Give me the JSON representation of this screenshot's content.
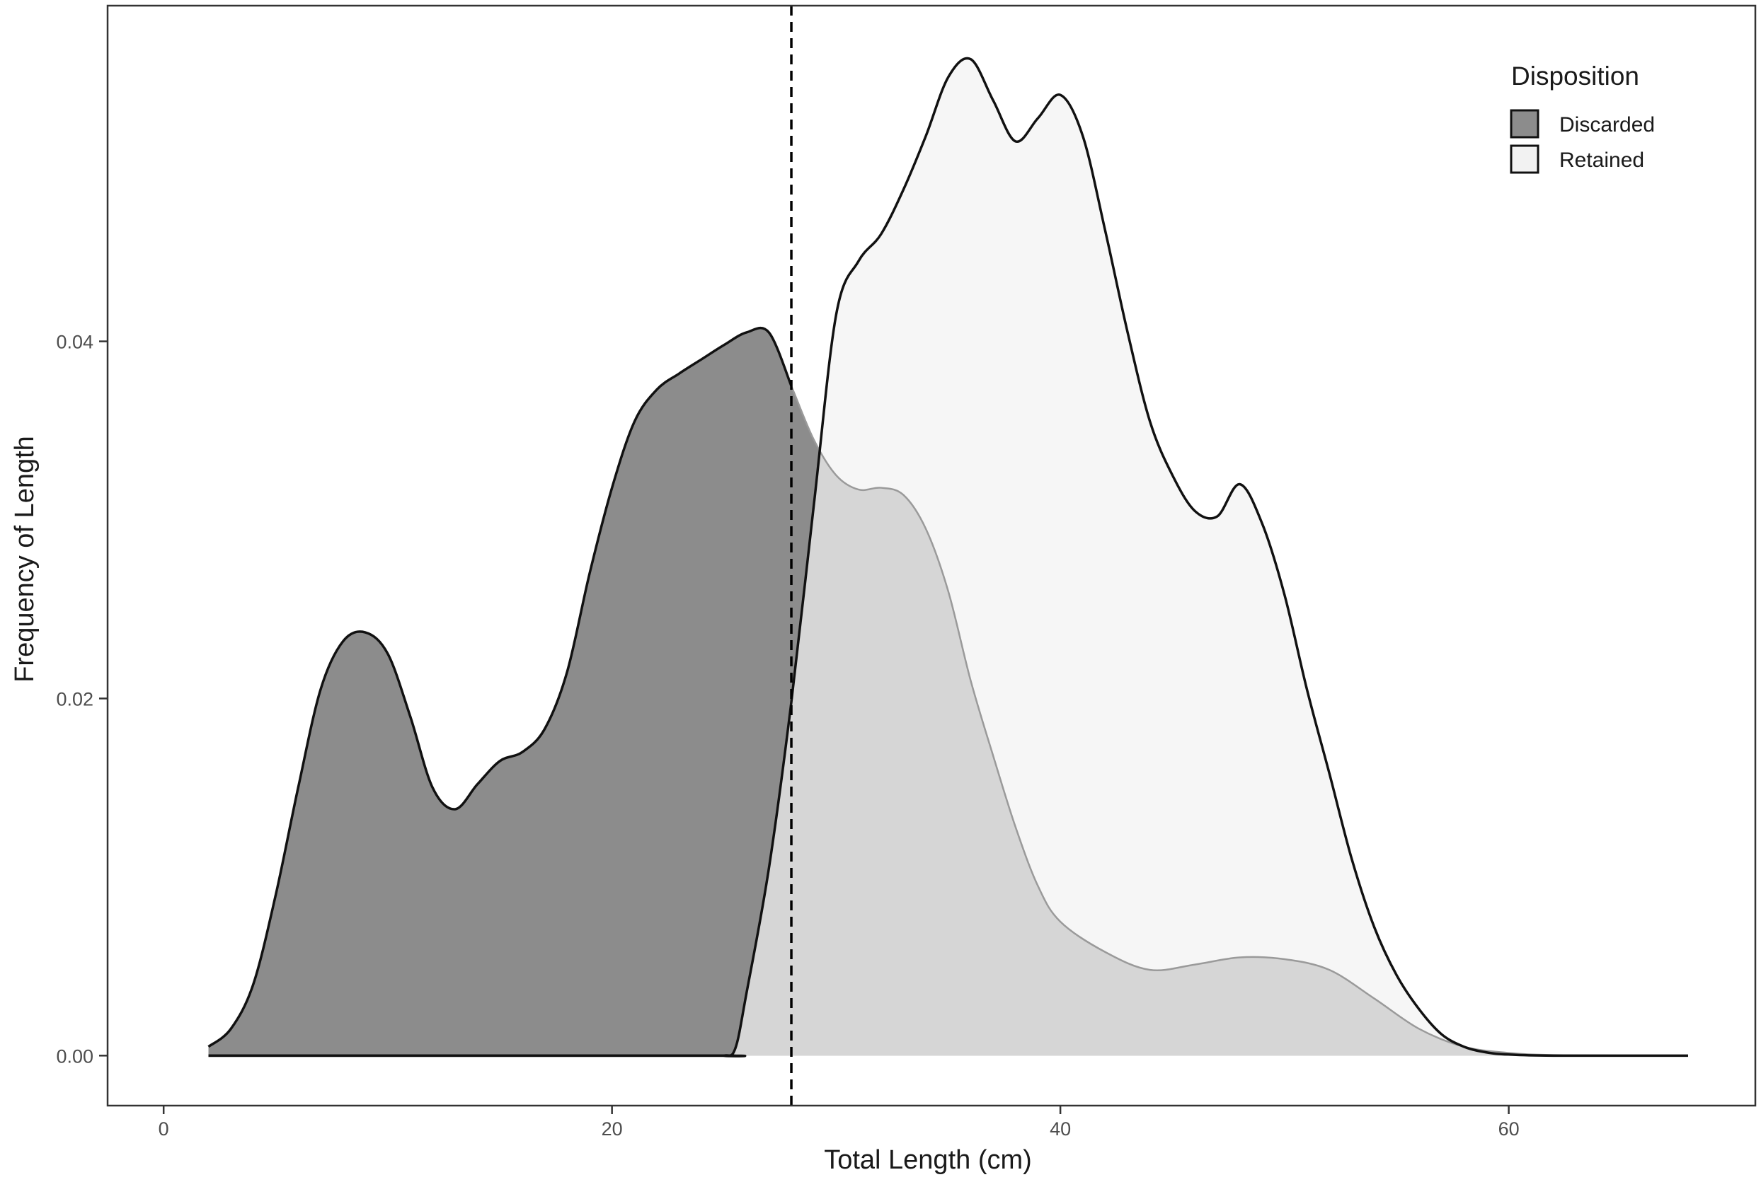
{
  "chart_data": {
    "type": "area",
    "title": "",
    "xlabel": "Total Length (cm)",
    "ylabel": "Frequency of Length",
    "xlim": [
      -2.5,
      71
    ],
    "ylim": [
      -0.0028,
      0.0588
    ],
    "x_ticks": [
      0,
      20,
      40,
      60
    ],
    "x_tick_labels": [
      "0",
      "20",
      "40",
      "60"
    ],
    "y_ticks": [
      0.0,
      0.02,
      0.04
    ],
    "y_tick_labels": [
      "0.00",
      "0.02",
      "0.04"
    ],
    "grid": false,
    "legend": {
      "title": "Disposition",
      "position": "top-right",
      "entries": [
        "Discarded",
        "Retained"
      ]
    },
    "reference_line": {
      "x": 28,
      "style": "dashed",
      "color": "#000000"
    },
    "series": [
      {
        "name": "Discarded",
        "fill": "#8c8c8c",
        "stroke": "#111111",
        "points": [
          [
            2,
            0.0005
          ],
          [
            3,
            0.0015
          ],
          [
            4,
            0.004
          ],
          [
            5,
            0.009
          ],
          [
            6,
            0.015
          ],
          [
            7,
            0.0205
          ],
          [
            8,
            0.0232
          ],
          [
            9,
            0.0237
          ],
          [
            10,
            0.0225
          ],
          [
            11,
            0.019
          ],
          [
            12,
            0.015
          ],
          [
            13,
            0.0138
          ],
          [
            14,
            0.0152
          ],
          [
            15,
            0.0165
          ],
          [
            16,
            0.017
          ],
          [
            17,
            0.0183
          ],
          [
            18,
            0.0215
          ],
          [
            19,
            0.027
          ],
          [
            20,
            0.0318
          ],
          [
            21,
            0.0355
          ],
          [
            22,
            0.0373
          ],
          [
            23,
            0.0382
          ],
          [
            24,
            0.039
          ],
          [
            25,
            0.0398
          ],
          [
            26,
            0.0405
          ],
          [
            27,
            0.0405
          ],
          [
            28,
            0.0375
          ],
          [
            29,
            0.0345
          ],
          [
            30,
            0.0325
          ],
          [
            31,
            0.0317
          ],
          [
            32,
            0.0318
          ],
          [
            33,
            0.0314
          ],
          [
            34,
            0.0295
          ],
          [
            35,
            0.026
          ],
          [
            36,
            0.021
          ],
          [
            37,
            0.0168
          ],
          [
            38,
            0.0128
          ],
          [
            39,
            0.0095
          ],
          [
            40,
            0.0075
          ],
          [
            42,
            0.0058
          ],
          [
            44,
            0.0048
          ],
          [
            46,
            0.0051
          ],
          [
            48,
            0.0055
          ],
          [
            50,
            0.0054
          ],
          [
            52,
            0.0048
          ],
          [
            54,
            0.0032
          ],
          [
            56,
            0.0015
          ],
          [
            58,
            0.0005
          ],
          [
            60,
            0.00015
          ],
          [
            62,
            3e-05
          ],
          [
            66,
            0.0
          ],
          [
            68,
            0.0
          ]
        ]
      },
      {
        "name": "Retained",
        "fill": "#f2f2f2",
        "stroke": "#111111",
        "points": [
          [
            2,
            0.0
          ],
          [
            24,
            0.0
          ],
          [
            25,
            0.0
          ],
          [
            25.5,
            0.0004
          ],
          [
            26,
            0.0035
          ],
          [
            27,
            0.0105
          ],
          [
            28,
            0.0198
          ],
          [
            29,
            0.0308
          ],
          [
            30,
            0.0415
          ],
          [
            31,
            0.0445
          ],
          [
            32,
            0.046
          ],
          [
            33,
            0.0485
          ],
          [
            34,
            0.0515
          ],
          [
            35,
            0.0548
          ],
          [
            36,
            0.0558
          ],
          [
            37,
            0.0535
          ],
          [
            38,
            0.0512
          ],
          [
            39,
            0.0525
          ],
          [
            40,
            0.0538
          ],
          [
            41,
            0.0515
          ],
          [
            42,
            0.0462
          ],
          [
            43,
            0.0405
          ],
          [
            44,
            0.0355
          ],
          [
            45,
            0.0325
          ],
          [
            46,
            0.0305
          ],
          [
            47,
            0.0302
          ],
          [
            48,
            0.032
          ],
          [
            49,
            0.0298
          ],
          [
            50,
            0.0258
          ],
          [
            51,
            0.0205
          ],
          [
            52,
            0.0158
          ],
          [
            53,
            0.011
          ],
          [
            54,
            0.0072
          ],
          [
            55,
            0.0045
          ],
          [
            56,
            0.0026
          ],
          [
            57,
            0.0012
          ],
          [
            58,
            0.0005
          ],
          [
            59,
            0.00018
          ],
          [
            60,
            6e-05
          ],
          [
            62,
            0.0
          ],
          [
            68,
            0.0
          ]
        ]
      }
    ]
  }
}
